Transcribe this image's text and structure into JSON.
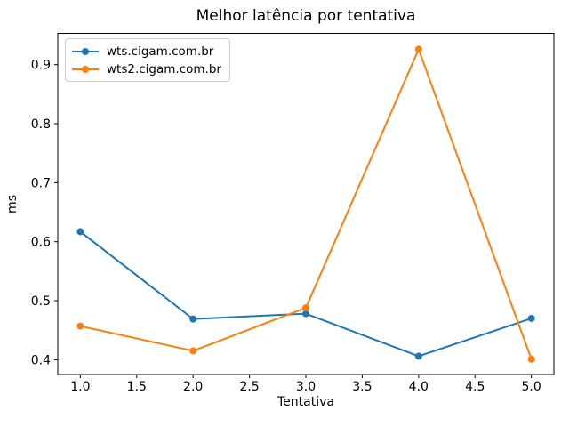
{
  "chart_data": {
    "type": "line",
    "title": "Melhor latência por tentativa",
    "xlabel": "Tentativa",
    "ylabel": "ms",
    "x": [
      1,
      2,
      3,
      4,
      5
    ],
    "series": [
      {
        "name": "wts.cigam.com.br",
        "color": "#1f77b4",
        "values": [
          0.617,
          0.469,
          0.478,
          0.406,
          0.47
        ]
      },
      {
        "name": "wts2.cigam.com.br",
        "color": "#ff7f0e",
        "values": [
          0.457,
          0.415,
          0.488,
          0.926,
          0.401
        ]
      }
    ],
    "xtick_labels": [
      "1.0",
      "1.5",
      "2.0",
      "2.5",
      "3.0",
      "3.5",
      "4.0",
      "4.5",
      "5.0"
    ],
    "ytick_labels": [
      "0.4",
      "0.5",
      "0.6",
      "0.7",
      "0.8",
      "0.9"
    ],
    "xlim": [
      0.8,
      5.2
    ],
    "ylim": [
      0.375,
      0.953
    ],
    "grid": false,
    "legend_position": "upper-left",
    "marker": "circle",
    "background_color": "#ffffff",
    "spine_color": "#000000"
  }
}
